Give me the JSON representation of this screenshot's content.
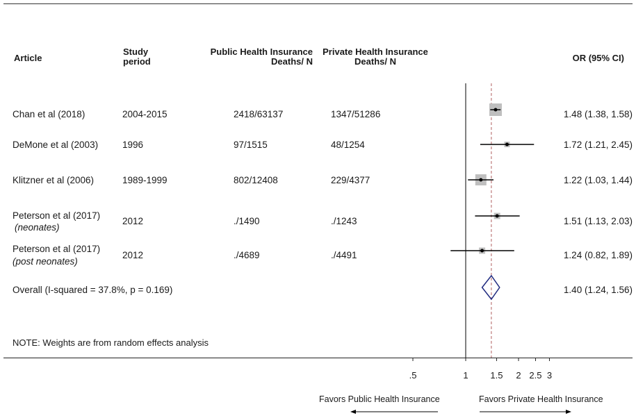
{
  "chart_data": {
    "type": "forest",
    "columns": {
      "article": "Article",
      "study_period": [
        "Study",
        "period"
      ],
      "public": [
        "Public Health Insurance",
        "Deaths/ N"
      ],
      "private": [
        "Private Health Insurance",
        "Deaths/ N"
      ],
      "or": "OR (95% CI)"
    },
    "studies": [
      {
        "article": "Chan et al (2018)",
        "sub": "",
        "period": "2004-2015",
        "public": "2418/63137",
        "private": "1347/51286",
        "or_label": "1.48 (1.38, 1.58)",
        "or": 1.48,
        "lo": 1.38,
        "hi": 1.58
      },
      {
        "article": "DeMone et al (2003)",
        "sub": "",
        "period": "1996",
        "public": "97/1515",
        "private": "48/1254",
        "or_label": "1.72 (1.21, 2.45)",
        "or": 1.72,
        "lo": 1.21,
        "hi": 2.45
      },
      {
        "article": "Klitzner et al (2006)",
        "sub": "",
        "period": "1989-1999",
        "public": "802/12408",
        "private": "229/4377",
        "or_label": "1.22 (1.03, 1.44)",
        "or": 1.22,
        "lo": 1.03,
        "hi": 1.44
      },
      {
        "article": "Peterson et al (2017)",
        "sub": "(neonates)",
        "period": "2012",
        "public": "./1490",
        "private": "./1243",
        "or_label": "1.51 (1.13, 2.03)",
        "or": 1.51,
        "lo": 1.13,
        "hi": 2.03
      },
      {
        "article": "Peterson  et al (2017)",
        "sub": "(post neonates)",
        "period": "2012",
        "public": "./4689",
        "private": "./4491",
        "or_label": "1.24 (0.82, 1.89)",
        "or": 1.24,
        "lo": 0.82,
        "hi": 1.89
      }
    ],
    "overall": {
      "label": "Overall  (I-squared = 37.8%, p = 0.169)",
      "or_label": "1.40 (1.24, 1.56)",
      "or": 1.4,
      "lo": 1.24,
      "hi": 1.56
    },
    "note": "NOTE: Weights are from random effects analysis",
    "x_ticks": [
      0.5,
      1,
      1.5,
      2,
      2.5,
      3
    ],
    "x_tick_labels": [
      ".5",
      "1",
      "1.5",
      "2",
      "2.5",
      "3"
    ],
    "xlim": [
      0.5,
      3
    ],
    "null_line": 1,
    "favors_left": "Favors Public Health Insurance",
    "favors_right": "Favors Private Health Insurance",
    "colors": {
      "box": "#bfbfbf",
      "ci": "#000000",
      "diamond": "#1f2a80",
      "overall_line": "#b06060"
    }
  }
}
